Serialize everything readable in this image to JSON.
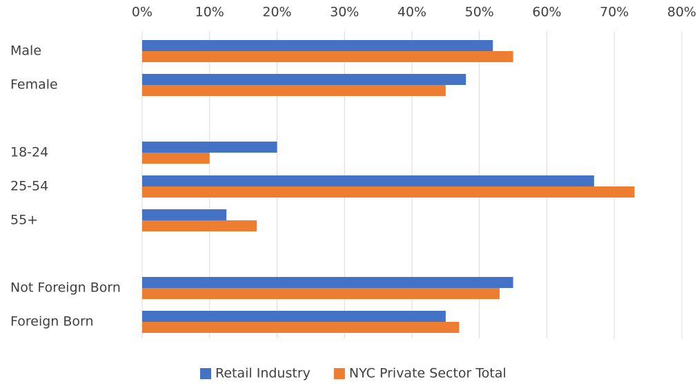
{
  "chart_data": {
    "type": "hbar",
    "categories": [
      "Male",
      "Female",
      null,
      "18-24",
      "25-54",
      "55+",
      null,
      "Not Foreign Born",
      "Foreign Born"
    ],
    "series": [
      {
        "name": "Retail Industry",
        "color": "#4472c4",
        "values": [
          52,
          48,
          null,
          20,
          67,
          12.5,
          null,
          55,
          45
        ]
      },
      {
        "name": "NYC Private Sector Total",
        "color": "#ed7d31",
        "values": [
          55,
          45,
          null,
          10,
          73,
          17,
          null,
          53,
          47
        ]
      }
    ],
    "xlim": [
      0,
      80
    ],
    "xticks": [
      {
        "value": 0,
        "label": "0%"
      },
      {
        "value": 10,
        "label": "10%"
      },
      {
        "value": 20,
        "label": "20%"
      },
      {
        "value": 30,
        "label": "30%"
      },
      {
        "value": 40,
        "label": "40%"
      },
      {
        "value": 50,
        "label": "50%"
      },
      {
        "value": 60,
        "label": "60%"
      },
      {
        "value": 70,
        "label": "70%"
      },
      {
        "value": 80,
        "label": "80%"
      }
    ],
    "grid": true,
    "legend": "bottom"
  }
}
